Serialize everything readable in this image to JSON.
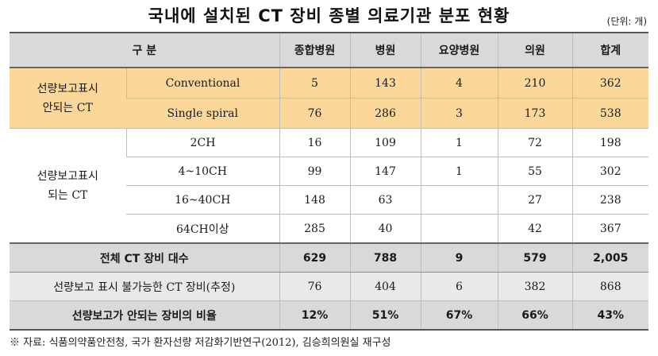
{
  "title": "국내에 설치된 CT 장비 종별 의료기관 분포 현황",
  "unit": "(단위: 개)",
  "header": {
    "category": "구 분",
    "cols": [
      "종합병원",
      "병원",
      "요양병원",
      "의원",
      "합계"
    ]
  },
  "group_not_shown": {
    "line1": "선량보고표시",
    "line2": "안되는 CT",
    "rows": [
      {
        "label": "Conventional",
        "values": [
          "5",
          "143",
          "4",
          "210",
          "362"
        ]
      },
      {
        "label": "Single spiral",
        "values": [
          "76",
          "286",
          "3",
          "173",
          "538"
        ]
      }
    ]
  },
  "group_shown": {
    "line1": "선량보고표시",
    "line2": "되는 CT",
    "rows": [
      {
        "label": "2CH",
        "values": [
          "16",
          "109",
          "1",
          "72",
          "198"
        ]
      },
      {
        "label": "4~10CH",
        "values": [
          "99",
          "147",
          "1",
          "55",
          "302"
        ]
      },
      {
        "label": "16~40CH",
        "values": [
          "148",
          "63",
          "",
          "27",
          "238"
        ]
      },
      {
        "label": "64CH이상",
        "values": [
          "285",
          "40",
          "",
          "42",
          "367"
        ]
      }
    ]
  },
  "total": {
    "label": "전체 CT 장비 대수",
    "values": [
      "629",
      "788",
      "9",
      "579",
      "2,005"
    ]
  },
  "estimated": {
    "label": "선량보고 표시 불가능한 CT 장비(추정)",
    "values": [
      "76",
      "404",
      "6",
      "382",
      "868"
    ]
  },
  "ratio": {
    "label": "선량보고가 안되는 장비의 비율",
    "values": [
      "12%",
      "51%",
      "67%",
      "66%",
      "43%"
    ]
  },
  "note": "※ 자료: 식품의약품안전청, 국가 환자선량 저감화기반연구(2012), 김승희의원실 재구성",
  "colors": {
    "header_bg": "#d9d9d9",
    "highlight_bg": "#fbd79a",
    "estimate_bg": "#e9e9e9"
  }
}
